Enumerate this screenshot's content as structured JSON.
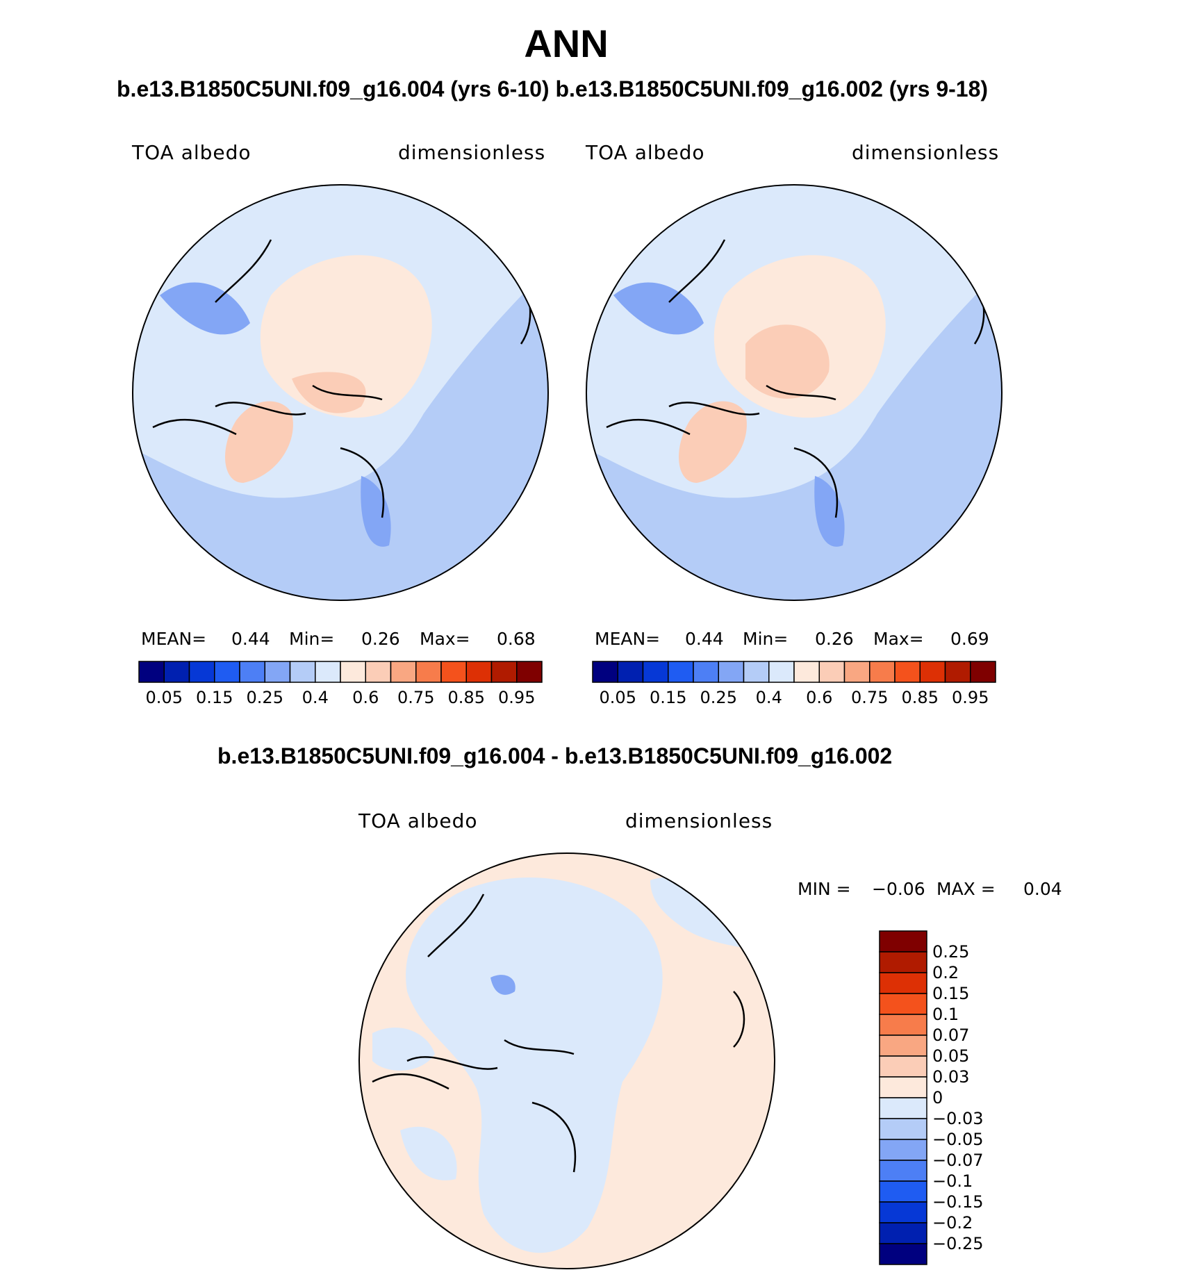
{
  "page_title": "ANN",
  "subtitle_top": "b.e13.B1850C5UNI.f09_g16.004 (yrs 6-10) b.e13.B1850C5UNI.f09_g16.002 (yrs 9-18)",
  "subtitle_diff": "b.e13.B1850C5UNI.f09_g16.004 - b.e13.B1850C5UNI.f09_g16.002",
  "colors": {
    "abs_scale": [
      "#00007f",
      "#0020b0",
      "#0638d6",
      "#1f5cf2",
      "#4d7ff5",
      "#83a6f5",
      "#b4ccf7",
      "#dbe9fb",
      "#fde9dc",
      "#fbcdb7",
      "#f9a782",
      "#f77c4b",
      "#f4521c",
      "#dd3005",
      "#b01b00",
      "#7f0000"
    ],
    "diff_scale": [
      "#00007f",
      "#0020b0",
      "#0638d6",
      "#1f5cf2",
      "#4d7ff5",
      "#83a6f5",
      "#b4ccf7",
      "#dbe9fb",
      "#fde9dc",
      "#fbcdb7",
      "#f9a782",
      "#f77c4b",
      "#f4521c",
      "#dd3005",
      "#b01b00",
      "#7f0000"
    ]
  },
  "chart_data": [
    {
      "type": "heatmap",
      "projection": "north-polar-stereographic",
      "title": "TOA albedo",
      "units": "dimensionless",
      "stats": {
        "mean_label": "MEAN=",
        "mean": "0.44",
        "min_label": "Min=",
        "min": "0.26",
        "max_label": "Max=",
        "max": "0.68"
      },
      "colorbar_ticks": [
        "0.05",
        "0.15",
        "0.25",
        "0.4",
        "0.6",
        "0.75",
        "0.85",
        "0.95"
      ]
    },
    {
      "type": "heatmap",
      "projection": "north-polar-stereographic",
      "title": "TOA albedo",
      "units": "dimensionless",
      "stats": {
        "mean_label": "MEAN=",
        "mean": "0.44",
        "min_label": "Min=",
        "min": "0.26",
        "max_label": "Max=",
        "max": "0.69"
      },
      "colorbar_ticks": [
        "0.05",
        "0.15",
        "0.25",
        "0.4",
        "0.6",
        "0.75",
        "0.85",
        "0.95"
      ]
    },
    {
      "type": "heatmap",
      "projection": "north-polar-stereographic",
      "title": "TOA albedo",
      "units": "dimensionless",
      "stats": {
        "min_label": "MIN =",
        "min": "−0.06",
        "max_label": "MAX =",
        "max": "0.04"
      },
      "colorbar_ticks": [
        "0.25",
        "0.2",
        "0.15",
        "0.1",
        "0.07",
        "0.05",
        "0.03",
        "0",
        "−0.03",
        "−0.05",
        "−0.07",
        "−0.1",
        "−0.15",
        "−0.2",
        "−0.25"
      ]
    }
  ]
}
